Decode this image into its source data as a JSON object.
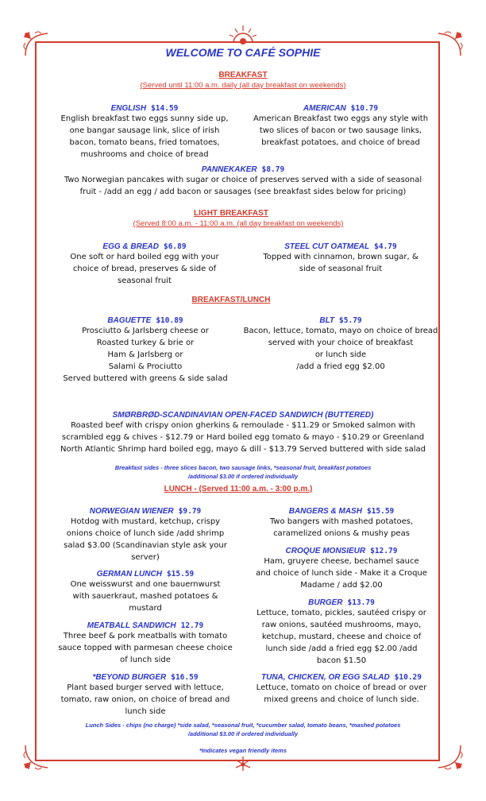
{
  "title": "WELCOME TO CAFÉ SOPHIE",
  "breakfast": {
    "header": "BREAKFAST",
    "note": "(Served until 11:00 a.m. daily (all day breakfast on weekends)",
    "items": [
      {
        "name": "ENGLISH",
        "price": "$14.59",
        "desc": "English breakfast two eggs sunny side up, one bangar sausage link, slice of irish bacon, tomato beans, fried tomatoes, mushrooms and choice of bread"
      },
      {
        "name": "AMERICAN",
        "price": "$10.79",
        "desc": "American Breakfast two eggs any style with two slices of bacon or two sausage links,  breakfast potatoes, and choice of bread"
      },
      {
        "name": "PANNEKAKER",
        "price": "$8.79",
        "desc": "Two Norwegian pancakes with sugar or choice of preserves served with a side of seasonal fruit -  /add an egg / add bacon or sausages (see breakfast sides below for pricing)"
      }
    ]
  },
  "light_breakfast": {
    "header": "LIGHT BREAKFAST",
    "note": "(Served 8:00 a.m. - 11:00 a.m. (all day breakfast on weekends)",
    "items": [
      {
        "name": "EGG & BREAD",
        "price": "$6.89",
        "desc": "One soft or hard boiled egg with your choice of bread, preserves & side of seasonal fruit"
      },
      {
        "name": "STEEL CUT OATMEAL",
        "price": "$4.79",
        "desc": "Topped with cinnamon, brown sugar, & side of seasonal fruit"
      }
    ]
  },
  "breakfast_lunch": {
    "header": "BREAKFAST/LUNCH",
    "items": [
      {
        "name": "BAGUETTE",
        "price": "$10.89",
        "lines": [
          "Prosciutto & Jarlsberg cheese or",
          "Roasted turkey & brie or",
          "Ham & Jarlsberg  or",
          "Salami & Prociutto",
          "Served buttered with greens & side salad"
        ]
      },
      {
        "name": "BLT",
        "price": "$5.79",
        "lines": [
          "Bacon, lettuce, tomato, mayo on choice of bread",
          "served with your choice of breakfast",
          "or lunch side",
          "/add a fried egg $2.00"
        ]
      },
      {
        "name": "SMØRBRØD-SCANDINAVIAN OPEN-FACED SANDWICH (BUTTERED)",
        "price": "",
        "desc": "Roasted beef with crispy onion gherkins & remoulade - $11.29 or  Smoked salmon with scrambled egg & chives - $12.79 or  Hard boiled egg tomato & mayo - $10.29 or  Greenland North Atlantic Shrimp hard boiled egg, mayo & dill - $13.79  Served buttered with side salad"
      }
    ],
    "sides_note": "Breakfast sides - three slices bacon, two sausage links, *seasonal fruit, breakfast potatoes",
    "sides_note2": "/additional $3.00 if ordered individually"
  },
  "lunch": {
    "header": "LUNCH - (Served  11:00 a.m. - 3:00 p.m.)",
    "left": [
      {
        "name": "NORWEGIAN WIENER",
        "price": "$9.79",
        "desc": "Hotdog with mustard, ketchup, crispy onions choice of lunch side    /add shrimp salad $3.00 (Scandinavian style ask your server)"
      },
      {
        "name": "GERMAN LUNCH",
        "price": "$15.59",
        "desc": "One weisswurst and one bauernwurst with sauerkraut, mashed potatoes & mustard"
      },
      {
        "name": "MEATBALL SANDWICH",
        "price": "12.79",
        "desc": "Three beef & pork meatballs with tomato sauce topped with parmesan cheese choice of lunch side"
      },
      {
        "name": "*BEYOND BURGER",
        "price": "$16.59",
        "desc": "Plant based burger served with lettuce, tomato, raw onion, on choice of bread and lunch side"
      }
    ],
    "right": [
      {
        "name": "BANGERS & MASH",
        "price": "$15.59",
        "desc": "Two bangers with mashed potatoes, caramelized onions & mushy peas"
      },
      {
        "name": "CROQUE MONSIEUR",
        "price": "$12.79",
        "desc": "Ham, gruyere cheese, bechamel sauce and choice of lunch side  - Make it a Croque Madame / add $2.00"
      },
      {
        "name": "BURGER",
        "price": "$13.79",
        "desc": "Lettuce, tomato, pickles, sautéed crispy or raw onions, sautéed mushrooms, mayo, ketchup, mustard, cheese and choice of lunch side  /add a fried egg  $2.00 /add bacon $1.50"
      },
      {
        "name": "TUNA, CHICKEN, OR EGG SALAD",
        "price": "$10.29",
        "desc": "Lettuce, tomato on choice of bread  or over mixed greens and choice of lunch side."
      }
    ],
    "sides_note": "Lunch Sides - chips (no charge) *side salad, *seasonal fruit, *cucumber salad, tomato beans, *mashed potatoes",
    "sides_note2": "/additional $3.00 if ordered individually"
  },
  "vegan_note": "*Indicates vegan friendly items",
  "colors": {
    "border": "#d33b2c",
    "accent_blue": "#2a36c8",
    "accent_red": "#d33b2c"
  }
}
